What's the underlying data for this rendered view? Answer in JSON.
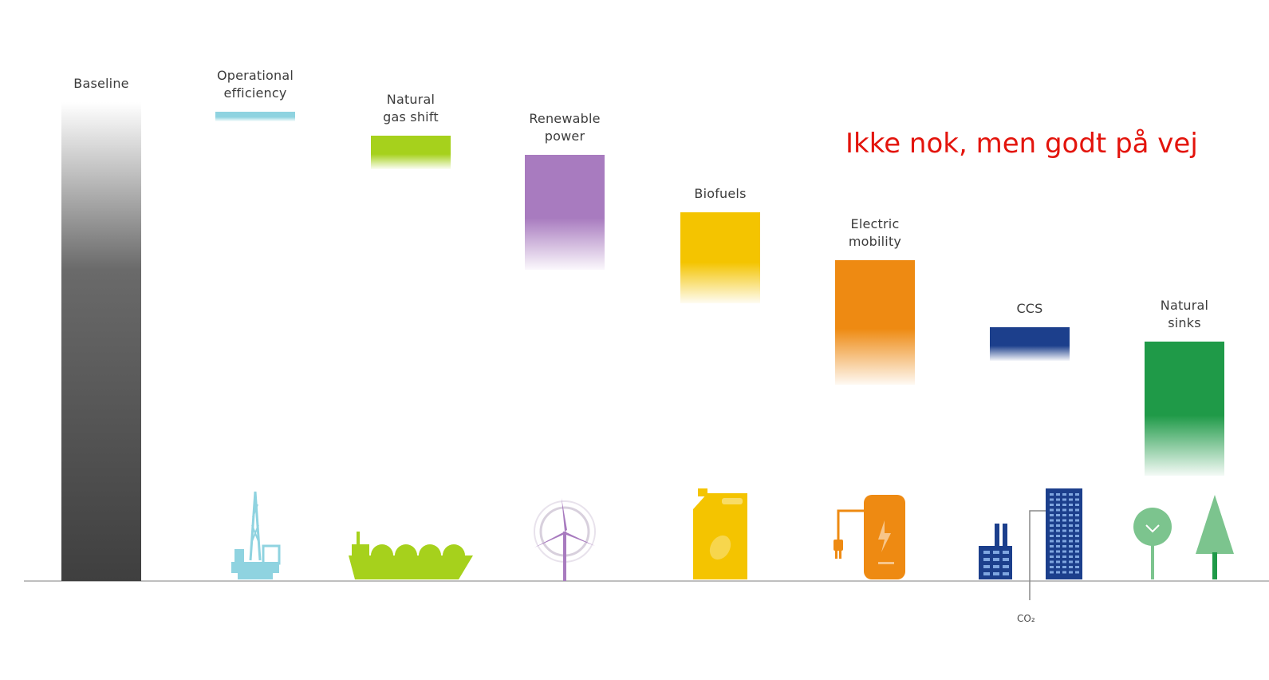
{
  "annotation": "Ikke nok, men godt på vej",
  "co2_label": "CO₂",
  "colors": {
    "baseline": "#3f3f3f",
    "operational_efficiency": "#8fd3e0",
    "natural_gas_shift": "#a6d11c",
    "renewable_power": "#a87bbf",
    "biofuels": "#f4c400",
    "electric_mobility": "#ee8a12",
    "ccs": "#1c3f8c",
    "natural_sinks": "#1f9a48",
    "annotation": "#e3140c",
    "axis": "#bfbfbf"
  },
  "chart_data": {
    "type": "bar",
    "subtype": "waterfall",
    "categories": [
      "Baseline",
      "Operational\nefficiency",
      "Natural\ngas shift",
      "Renewable\npower",
      "Biofuels",
      "Electric\nmobility",
      "CCS",
      "Natural\nsinks"
    ],
    "bars": [
      {
        "start": 0,
        "end": 100,
        "color": "#3f3f3f",
        "icon": "baseline-none"
      },
      {
        "start": 98,
        "end": 96,
        "color": "#8fd3e0",
        "icon": "oil-rig-icon"
      },
      {
        "start": 93,
        "end": 86,
        "color": "#a6d11c",
        "icon": "lng-ship-icon"
      },
      {
        "start": 89,
        "end": 65,
        "color": "#a87bbf",
        "icon": "wind-turbine-icon"
      },
      {
        "start": 77,
        "end": 58,
        "color": "#f4c400",
        "icon": "jerry-can-icon"
      },
      {
        "start": 67,
        "end": 41,
        "color": "#ee8a12",
        "icon": "charging-station-icon"
      },
      {
        "start": 53,
        "end": 46,
        "color": "#1c3f8c",
        "icon": "factory-icon"
      },
      {
        "start": 50,
        "end": 22,
        "color": "#1f9a48",
        "icon": "trees-icon"
      }
    ],
    "title": "",
    "xlabel": "",
    "ylabel": "",
    "ylim": [
      0,
      100
    ],
    "grid": false,
    "legend": "none"
  }
}
